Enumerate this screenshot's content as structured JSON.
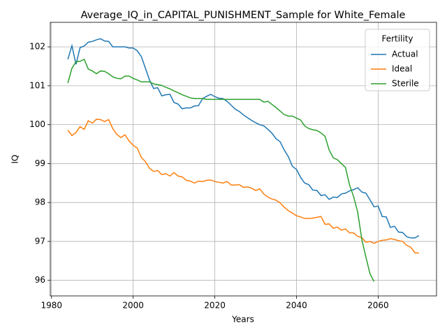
{
  "chart_data": {
    "type": "line",
    "title": "Average_IQ_in_CAPITAL_PUNISHMENT_Sample for White_Female",
    "x_label": "Years",
    "y_label": "IQ",
    "x": [
      1984,
      1985,
      1986,
      1987,
      1988,
      1989,
      1990,
      1991,
      1992,
      1993,
      1994,
      1995,
      1996,
      1997,
      1998,
      1999,
      2000,
      2001,
      2002,
      2003,
      2004,
      2005,
      2006,
      2007,
      2008,
      2009,
      2010,
      2011,
      2012,
      2013,
      2014,
      2015,
      2016,
      2017,
      2018,
      2019,
      2020,
      2021,
      2022,
      2023,
      2024,
      2025,
      2026,
      2027,
      2028,
      2029,
      2030,
      2031,
      2032,
      2033,
      2034,
      2035,
      2036,
      2037,
      2038,
      2039,
      2040,
      2041,
      2042,
      2043,
      2044,
      2045,
      2046,
      2047,
      2048,
      2049,
      2050,
      2051,
      2052,
      2053,
      2054,
      2055,
      2056,
      2057,
      2058,
      2059,
      2060,
      2061,
      2062,
      2063,
      2064,
      2065,
      2066,
      2067,
      2068,
      2069,
      2070
    ],
    "series": [
      {
        "name": "Actual",
        "color": "#1f77b4",
        "values": [
          101.68,
          102.03,
          101.55,
          101.98,
          102.02,
          102.12,
          102.14,
          102.18,
          102.21,
          102.15,
          102.14,
          102.0,
          102.0,
          102.0,
          102.0,
          101.97,
          101.97,
          101.9,
          101.75,
          101.45,
          101.15,
          100.93,
          100.95,
          100.74,
          100.77,
          100.78,
          100.57,
          100.53,
          100.41,
          100.43,
          100.43,
          100.48,
          100.49,
          100.67,
          100.73,
          100.78,
          100.72,
          100.68,
          100.67,
          100.6,
          100.5,
          100.4,
          100.34,
          100.25,
          100.18,
          100.11,
          100.05,
          100.0,
          99.97,
          99.88,
          99.78,
          99.64,
          99.56,
          99.35,
          99.18,
          98.93,
          98.85,
          98.65,
          98.5,
          98.46,
          98.32,
          98.31,
          98.18,
          98.2,
          98.08,
          98.14,
          98.13,
          98.22,
          98.24,
          98.3,
          98.33,
          98.38,
          98.27,
          98.24,
          98.07,
          97.89,
          97.91,
          97.64,
          97.63,
          97.36,
          97.39,
          97.24,
          97.23,
          97.12,
          97.09,
          97.09,
          97.15
        ]
      },
      {
        "name": "Ideal",
        "color": "#ff7f0e",
        "values": [
          99.86,
          99.72,
          99.8,
          99.95,
          99.88,
          100.1,
          100.04,
          100.14,
          100.13,
          100.08,
          100.13,
          99.9,
          99.75,
          99.67,
          99.74,
          99.58,
          99.47,
          99.4,
          99.16,
          99.05,
          98.88,
          98.8,
          98.82,
          98.72,
          98.74,
          98.68,
          98.77,
          98.68,
          98.66,
          98.57,
          98.55,
          98.5,
          98.55,
          98.54,
          98.57,
          98.58,
          98.54,
          98.52,
          98.5,
          98.54,
          98.45,
          98.45,
          98.46,
          98.39,
          98.4,
          98.37,
          98.31,
          98.35,
          98.22,
          98.14,
          98.09,
          98.06,
          97.99,
          97.88,
          97.79,
          97.73,
          97.66,
          97.63,
          97.59,
          97.59,
          97.6,
          97.62,
          97.64,
          97.44,
          97.45,
          97.34,
          97.37,
          97.29,
          97.32,
          97.22,
          97.22,
          97.13,
          97.1,
          96.98,
          97.0,
          96.95,
          97.0,
          97.03,
          97.04,
          97.07,
          97.05,
          97.02,
          97.0,
          96.9,
          96.85,
          96.71,
          96.7
        ]
      },
      {
        "name": "Sterile",
        "color": "#2ca02c",
        "values": [
          101.07,
          101.45,
          101.62,
          101.63,
          101.68,
          101.43,
          101.38,
          101.31,
          101.38,
          101.37,
          101.31,
          101.23,
          101.19,
          101.18,
          101.25,
          101.25,
          101.19,
          101.15,
          101.1,
          101.1,
          101.1,
          101.05,
          101.03,
          101.01,
          100.96,
          100.92,
          100.87,
          100.82,
          100.77,
          100.73,
          100.69,
          100.67,
          100.67,
          100.67,
          100.65,
          100.65,
          100.65,
          100.65,
          100.65,
          100.65,
          100.65,
          100.65,
          100.65,
          100.65,
          100.65,
          100.65,
          100.65,
          100.65,
          100.58,
          100.6,
          100.52,
          100.44,
          100.35,
          100.26,
          100.22,
          100.22,
          100.17,
          100.12,
          99.97,
          99.9,
          99.87,
          99.85,
          99.79,
          99.7,
          99.35,
          99.15,
          99.1,
          99.0,
          98.9,
          98.45,
          98.15,
          97.75,
          97.05,
          96.6,
          96.17,
          95.97,
          null,
          null,
          null,
          null,
          null,
          null,
          null,
          null,
          null,
          null,
          null
        ]
      }
    ],
    "xlim": [
      1979.7,
      2074.3
    ],
    "xticks": [
      1980,
      2000,
      2020,
      2040,
      2060
    ],
    "ylim": [
      95.6,
      102.63
    ],
    "yticks": [
      96,
      97,
      98,
      99,
      100,
      101,
      102
    ],
    "grid": true,
    "legend_title": "Fertility",
    "legend_position": "upper right"
  }
}
